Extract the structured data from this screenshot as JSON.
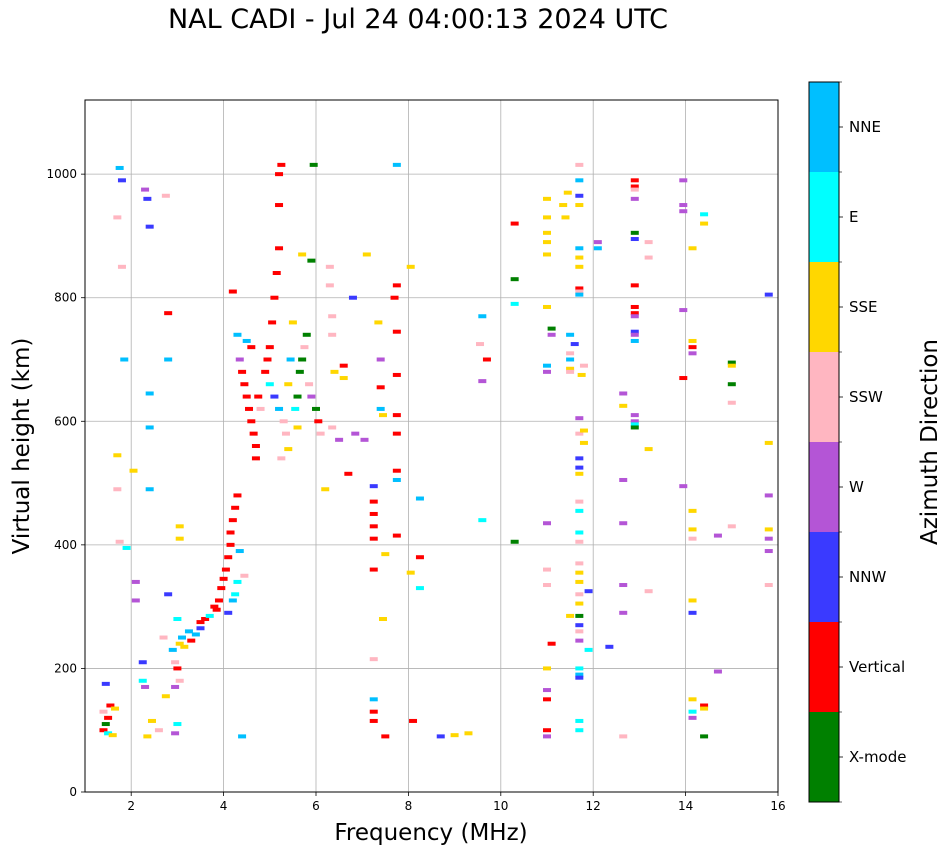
{
  "chart_data": {
    "type": "scatter",
    "title": "NAL CADI - Jul 24 04:00:13 2024 UTC",
    "xlabel": "Frequency (MHz)",
    "ylabel": "Virtual height (km)",
    "colorbar_label": "Azimuth Direction",
    "xlim": [
      1,
      16
    ],
    "ylim": [
      0,
      1120
    ],
    "xticks": [
      2,
      4,
      6,
      8,
      10,
      12,
      14,
      16
    ],
    "yticks": [
      0,
      200,
      400,
      600,
      800,
      1000
    ],
    "grid": true,
    "categories": [
      {
        "name": "X-mode",
        "color": "#008000"
      },
      {
        "name": "Vertical",
        "color": "#ff0000"
      },
      {
        "name": "NNW",
        "color": "#3a3aff"
      },
      {
        "name": "W",
        "color": "#b455d6"
      },
      {
        "name": "SSW",
        "color": "#ffb6c1"
      },
      {
        "name": "SSE",
        "color": "#ffd700"
      },
      {
        "name": "E",
        "color": "#00ffff"
      },
      {
        "name": "NNE",
        "color": "#00bfff"
      }
    ],
    "points": [
      [
        1.4,
        100,
        1
      ],
      [
        1.45,
        110,
        0
      ],
      [
        1.5,
        120,
        1
      ],
      [
        1.4,
        130,
        4
      ],
      [
        1.5,
        95,
        6
      ],
      [
        1.6,
        92,
        5
      ],
      [
        1.55,
        140,
        1
      ],
      [
        1.45,
        175,
        2
      ],
      [
        1.65,
        135,
        5
      ],
      [
        1.75,
        1010,
        7
      ],
      [
        1.8,
        990,
        2
      ],
      [
        1.85,
        700,
        7
      ],
      [
        1.8,
        850,
        4
      ],
      [
        1.7,
        930,
        4
      ],
      [
        1.9,
        395,
        6
      ],
      [
        1.75,
        405,
        4
      ],
      [
        1.7,
        545,
        5
      ],
      [
        1.7,
        490,
        4
      ],
      [
        2.05,
        520,
        5
      ],
      [
        2.1,
        340,
        3
      ],
      [
        2.1,
        310,
        3
      ],
      [
        2.25,
        210,
        2
      ],
      [
        2.25,
        180,
        6
      ],
      [
        2.3,
        170,
        3
      ],
      [
        2.3,
        975,
        3
      ],
      [
        2.35,
        960,
        2
      ],
      [
        2.4,
        915,
        2
      ],
      [
        2.4,
        645,
        7
      ],
      [
        2.4,
        590,
        7
      ],
      [
        2.4,
        490,
        7
      ],
      [
        2.45,
        115,
        5
      ],
      [
        2.35,
        90,
        5
      ],
      [
        2.6,
        100,
        4
      ],
      [
        2.7,
        250,
        4
      ],
      [
        2.75,
        965,
        4
      ],
      [
        2.75,
        155,
        5
      ],
      [
        2.8,
        320,
        2
      ],
      [
        2.8,
        700,
        7
      ],
      [
        2.8,
        775,
        1
      ],
      [
        2.9,
        230,
        7
      ],
      [
        2.95,
        210,
        4
      ],
      [
        3.0,
        200,
        1
      ],
      [
        2.95,
        170,
        3
      ],
      [
        3.05,
        180,
        4
      ],
      [
        3.0,
        110,
        6
      ],
      [
        3.05,
        240,
        5
      ],
      [
        3.0,
        280,
        6
      ],
      [
        3.05,
        430,
        5
      ],
      [
        3.05,
        410,
        5
      ],
      [
        2.95,
        95,
        3
      ],
      [
        3.1,
        250,
        7
      ],
      [
        3.15,
        235,
        5
      ],
      [
        3.25,
        260,
        7
      ],
      [
        3.3,
        245,
        1
      ],
      [
        3.4,
        255,
        7
      ],
      [
        3.5,
        265,
        2
      ],
      [
        3.5,
        275,
        1
      ],
      [
        3.6,
        280,
        1
      ],
      [
        3.7,
        285,
        6
      ],
      [
        3.8,
        300,
        1
      ],
      [
        3.85,
        295,
        1
      ],
      [
        3.9,
        310,
        1
      ],
      [
        3.95,
        330,
        1
      ],
      [
        4.0,
        345,
        1
      ],
      [
        4.05,
        360,
        1
      ],
      [
        4.1,
        380,
        1
      ],
      [
        4.15,
        400,
        1
      ],
      [
        4.15,
        420,
        1
      ],
      [
        4.2,
        440,
        1
      ],
      [
        4.25,
        460,
        1
      ],
      [
        4.3,
        480,
        1
      ],
      [
        4.3,
        340,
        6
      ],
      [
        4.25,
        320,
        6
      ],
      [
        4.2,
        310,
        7
      ],
      [
        4.35,
        390,
        7
      ],
      [
        4.45,
        350,
        4
      ],
      [
        4.4,
        90,
        7
      ],
      [
        4.1,
        290,
        2
      ],
      [
        4.2,
        810,
        1
      ],
      [
        4.3,
        740,
        7
      ],
      [
        4.35,
        700,
        3
      ],
      [
        4.4,
        680,
        1
      ],
      [
        4.45,
        660,
        1
      ],
      [
        4.5,
        640,
        1
      ],
      [
        4.55,
        620,
        1
      ],
      [
        4.6,
        600,
        1
      ],
      [
        4.65,
        580,
        1
      ],
      [
        4.7,
        560,
        1
      ],
      [
        4.75,
        640,
        1
      ],
      [
        4.8,
        620,
        4
      ],
      [
        4.9,
        680,
        1
      ],
      [
        4.95,
        700,
        1
      ],
      [
        5.0,
        720,
        1
      ],
      [
        5.05,
        760,
        1
      ],
      [
        5.1,
        800,
        1
      ],
      [
        5.15,
        840,
        1
      ],
      [
        5.2,
        880,
        1
      ],
      [
        5.2,
        950,
        1
      ],
      [
        5.2,
        1000,
        1
      ],
      [
        5.25,
        1015,
        1
      ],
      [
        5.0,
        660,
        6
      ],
      [
        5.1,
        640,
        2
      ],
      [
        5.2,
        620,
        7
      ],
      [
        5.3,
        600,
        4
      ],
      [
        5.35,
        580,
        4
      ],
      [
        5.4,
        660,
        5
      ],
      [
        5.45,
        700,
        7
      ],
      [
        5.5,
        760,
        5
      ],
      [
        5.55,
        620,
        6
      ],
      [
        5.6,
        640,
        0
      ],
      [
        5.65,
        680,
        0
      ],
      [
        5.7,
        700,
        0
      ],
      [
        5.75,
        720,
        4
      ],
      [
        5.8,
        740,
        0
      ],
      [
        5.85,
        660,
        4
      ],
      [
        5.9,
        640,
        3
      ],
      [
        6.0,
        620,
        0
      ],
      [
        5.9,
        860,
        0
      ],
      [
        5.95,
        1015,
        0
      ],
      [
        5.7,
        870,
        5
      ],
      [
        5.6,
        590,
        5
      ],
      [
        5.4,
        555,
        5
      ],
      [
        5.25,
        540,
        4
      ],
      [
        4.7,
        540,
        1
      ],
      [
        4.5,
        730,
        7
      ],
      [
        4.6,
        720,
        1
      ],
      [
        6.05,
        600,
        1
      ],
      [
        6.1,
        580,
        4
      ],
      [
        6.2,
        490,
        5
      ],
      [
        6.3,
        850,
        4
      ],
      [
        6.3,
        820,
        4
      ],
      [
        6.35,
        770,
        4
      ],
      [
        6.35,
        740,
        4
      ],
      [
        6.4,
        680,
        5
      ],
      [
        6.6,
        690,
        1
      ],
      [
        6.6,
        670,
        5
      ],
      [
        6.35,
        590,
        4
      ],
      [
        6.5,
        570,
        3
      ],
      [
        6.7,
        515,
        1
      ],
      [
        6.8,
        800,
        2
      ],
      [
        6.85,
        580,
        3
      ],
      [
        7.05,
        570,
        3
      ],
      [
        7.1,
        870,
        5
      ],
      [
        7.25,
        495,
        2
      ],
      [
        7.25,
        470,
        1
      ],
      [
        7.25,
        450,
        1
      ],
      [
        7.25,
        430,
        1
      ],
      [
        7.25,
        410,
        1
      ],
      [
        7.25,
        360,
        1
      ],
      [
        7.25,
        215,
        4
      ],
      [
        7.25,
        150,
        7
      ],
      [
        7.25,
        130,
        1
      ],
      [
        7.25,
        115,
        1
      ],
      [
        7.35,
        760,
        5
      ],
      [
        7.4,
        700,
        3
      ],
      [
        7.4,
        655,
        1
      ],
      [
        7.4,
        620,
        7
      ],
      [
        7.45,
        610,
        5
      ],
      [
        7.5,
        385,
        5
      ],
      [
        7.45,
        280,
        5
      ],
      [
        7.5,
        90,
        1
      ],
      [
        7.7,
        800,
        1
      ],
      [
        7.75,
        820,
        1
      ],
      [
        7.75,
        745,
        1
      ],
      [
        7.75,
        675,
        1
      ],
      [
        7.75,
        610,
        1
      ],
      [
        7.75,
        580,
        1
      ],
      [
        7.75,
        520,
        1
      ],
      [
        7.75,
        505,
        7
      ],
      [
        7.75,
        415,
        1
      ],
      [
        7.75,
        1015,
        7
      ],
      [
        8.05,
        850,
        5
      ],
      [
        8.05,
        355,
        5
      ],
      [
        8.1,
        115,
        1
      ],
      [
        8.25,
        475,
        7
      ],
      [
        8.25,
        380,
        1
      ],
      [
        8.25,
        330,
        6
      ],
      [
        8.7,
        90,
        2
      ],
      [
        9.0,
        92,
        5
      ],
      [
        9.3,
        95,
        5
      ],
      [
        9.55,
        725,
        4
      ],
      [
        9.6,
        770,
        7
      ],
      [
        9.6,
        665,
        3
      ],
      [
        9.7,
        700,
        1
      ],
      [
        9.6,
        440,
        6
      ],
      [
        10.3,
        920,
        1
      ],
      [
        10.3,
        830,
        0
      ],
      [
        10.3,
        790,
        6
      ],
      [
        10.3,
        405,
        0
      ],
      [
        11.0,
        960,
        5
      ],
      [
        11.0,
        930,
        5
      ],
      [
        11.0,
        905,
        5
      ],
      [
        11.0,
        890,
        5
      ],
      [
        11.0,
        870,
        5
      ],
      [
        11.0,
        785,
        5
      ],
      [
        11.1,
        750,
        0
      ],
      [
        11.1,
        740,
        3
      ],
      [
        11.0,
        690,
        7
      ],
      [
        11.0,
        680,
        3
      ],
      [
        11.0,
        435,
        3
      ],
      [
        11.0,
        360,
        4
      ],
      [
        11.0,
        335,
        4
      ],
      [
        11.0,
        200,
        5
      ],
      [
        11.0,
        165,
        3
      ],
      [
        11.0,
        150,
        1
      ],
      [
        11.0,
        100,
        1
      ],
      [
        11.0,
        90,
        3
      ],
      [
        11.1,
        240,
        1
      ],
      [
        11.35,
        950,
        5
      ],
      [
        11.4,
        930,
        5
      ],
      [
        11.45,
        970,
        5
      ],
      [
        11.5,
        710,
        4
      ],
      [
        11.5,
        700,
        7
      ],
      [
        11.5,
        685,
        5
      ],
      [
        11.5,
        680,
        4
      ],
      [
        11.5,
        740,
        7
      ],
      [
        11.6,
        725,
        2
      ],
      [
        11.5,
        285,
        5
      ],
      [
        11.7,
        1015,
        4
      ],
      [
        11.7,
        990,
        7
      ],
      [
        11.7,
        965,
        2
      ],
      [
        11.7,
        950,
        5
      ],
      [
        11.7,
        880,
        7
      ],
      [
        11.7,
        865,
        5
      ],
      [
        11.7,
        850,
        5
      ],
      [
        11.7,
        815,
        1
      ],
      [
        11.7,
        810,
        4
      ],
      [
        11.7,
        805,
        7
      ],
      [
        11.7,
        605,
        3
      ],
      [
        11.7,
        580,
        4
      ],
      [
        11.7,
        540,
        2
      ],
      [
        11.7,
        525,
        2
      ],
      [
        11.7,
        515,
        5
      ],
      [
        11.7,
        470,
        4
      ],
      [
        11.7,
        455,
        6
      ],
      [
        11.7,
        420,
        6
      ],
      [
        11.7,
        405,
        4
      ],
      [
        11.7,
        370,
        4
      ],
      [
        11.7,
        355,
        5
      ],
      [
        11.7,
        340,
        5
      ],
      [
        11.7,
        320,
        4
      ],
      [
        11.7,
        305,
        5
      ],
      [
        11.7,
        285,
        0
      ],
      [
        11.7,
        270,
        2
      ],
      [
        11.7,
        260,
        4
      ],
      [
        11.7,
        245,
        3
      ],
      [
        11.7,
        200,
        6
      ],
      [
        11.7,
        190,
        7
      ],
      [
        11.7,
        185,
        2
      ],
      [
        11.7,
        115,
        6
      ],
      [
        11.7,
        100,
        6
      ],
      [
        11.75,
        675,
        5
      ],
      [
        11.8,
        690,
        4
      ],
      [
        11.8,
        585,
        5
      ],
      [
        11.8,
        565,
        5
      ],
      [
        11.9,
        325,
        2
      ],
      [
        11.9,
        230,
        6
      ],
      [
        12.1,
        890,
        3
      ],
      [
        12.1,
        880,
        7
      ],
      [
        12.35,
        235,
        2
      ],
      [
        12.65,
        645,
        3
      ],
      [
        12.65,
        625,
        5
      ],
      [
        12.65,
        505,
        3
      ],
      [
        12.65,
        435,
        3
      ],
      [
        12.65,
        335,
        3
      ],
      [
        12.65,
        290,
        3
      ],
      [
        12.65,
        90,
        4
      ],
      [
        12.9,
        990,
        1
      ],
      [
        12.9,
        980,
        1
      ],
      [
        12.9,
        975,
        4
      ],
      [
        12.9,
        960,
        3
      ],
      [
        12.9,
        905,
        0
      ],
      [
        12.9,
        895,
        2
      ],
      [
        12.9,
        820,
        1
      ],
      [
        12.9,
        785,
        1
      ],
      [
        12.9,
        775,
        1
      ],
      [
        12.9,
        770,
        3
      ],
      [
        12.9,
        745,
        2
      ],
      [
        12.9,
        740,
        3
      ],
      [
        12.9,
        730,
        7
      ],
      [
        12.9,
        610,
        3
      ],
      [
        12.9,
        600,
        3
      ],
      [
        12.9,
        595,
        6
      ],
      [
        12.9,
        590,
        0
      ],
      [
        13.2,
        890,
        4
      ],
      [
        13.2,
        865,
        4
      ],
      [
        13.2,
        555,
        5
      ],
      [
        13.2,
        325,
        4
      ],
      [
        13.95,
        990,
        3
      ],
      [
        13.95,
        950,
        3
      ],
      [
        13.95,
        940,
        3
      ],
      [
        13.95,
        780,
        3
      ],
      [
        13.95,
        670,
        1
      ],
      [
        13.95,
        495,
        3
      ],
      [
        14.15,
        880,
        5
      ],
      [
        14.15,
        730,
        5
      ],
      [
        14.15,
        720,
        1
      ],
      [
        14.15,
        710,
        3
      ],
      [
        14.15,
        455,
        5
      ],
      [
        14.15,
        425,
        5
      ],
      [
        14.15,
        410,
        4
      ],
      [
        14.15,
        310,
        5
      ],
      [
        14.15,
        290,
        2
      ],
      [
        14.15,
        150,
        5
      ],
      [
        14.15,
        130,
        6
      ],
      [
        14.15,
        120,
        3
      ],
      [
        14.4,
        935,
        6
      ],
      [
        14.4,
        920,
        5
      ],
      [
        14.4,
        140,
        1
      ],
      [
        14.4,
        135,
        5
      ],
      [
        14.4,
        90,
        0
      ],
      [
        14.7,
        415,
        3
      ],
      [
        14.7,
        195,
        3
      ],
      [
        15.0,
        695,
        0
      ],
      [
        15.0,
        690,
        5
      ],
      [
        15.0,
        660,
        0
      ],
      [
        15.0,
        630,
        4
      ],
      [
        15.0,
        430,
        4
      ],
      [
        15.8,
        805,
        2
      ],
      [
        15.8,
        565,
        5
      ],
      [
        15.8,
        480,
        3
      ],
      [
        15.8,
        425,
        5
      ],
      [
        15.8,
        410,
        3
      ],
      [
        15.8,
        390,
        3
      ],
      [
        15.8,
        335,
        4
      ]
    ]
  }
}
